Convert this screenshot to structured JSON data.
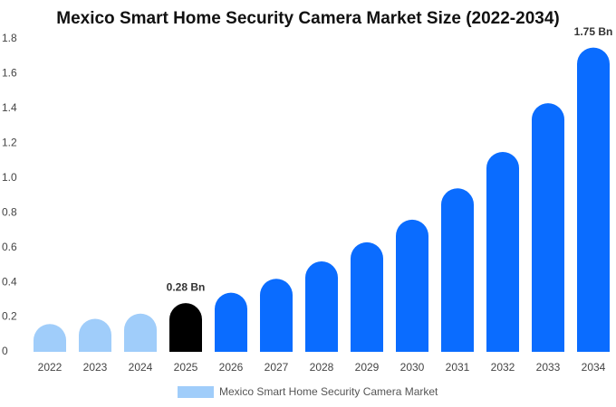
{
  "chart_data": {
    "type": "bar",
    "title": "Mexico Smart Home Security Camera Market Size (2022-2034)",
    "categories": [
      "2022",
      "2023",
      "2024",
      "2025",
      "2026",
      "2027",
      "2028",
      "2029",
      "2030",
      "2031",
      "2032",
      "2033",
      "2034"
    ],
    "series": [
      {
        "name": "Mexico Smart Home Security Camera Market",
        "color": "#a0cdfa",
        "values": [
          0.16,
          0.19,
          0.22,
          0.28,
          0.34,
          0.42,
          0.52,
          0.63,
          0.76,
          0.94,
          1.15,
          1.43,
          1.75
        ],
        "colors": [
          "#a0cdfa",
          "#a0cdfa",
          "#a0cdfa",
          "#000000",
          "#0a6cff",
          "#0a6cff",
          "#0a6cff",
          "#0a6cff",
          "#0a6cff",
          "#0a6cff",
          "#0a6cff",
          "#0a6cff",
          "#0a6cff"
        ],
        "value_labels": [
          null,
          null,
          null,
          "0.28 Bn",
          null,
          null,
          null,
          null,
          null,
          null,
          null,
          null,
          "1.75 Bn"
        ]
      }
    ],
    "ylim": [
      0,
      1.8
    ],
    "yticks": [
      0,
      0.2,
      0.4,
      0.6,
      0.8,
      {
        "value": 1,
        "label": "1.0"
      },
      1.2,
      1.4,
      1.6,
      1.8
    ],
    "grid": false
  }
}
